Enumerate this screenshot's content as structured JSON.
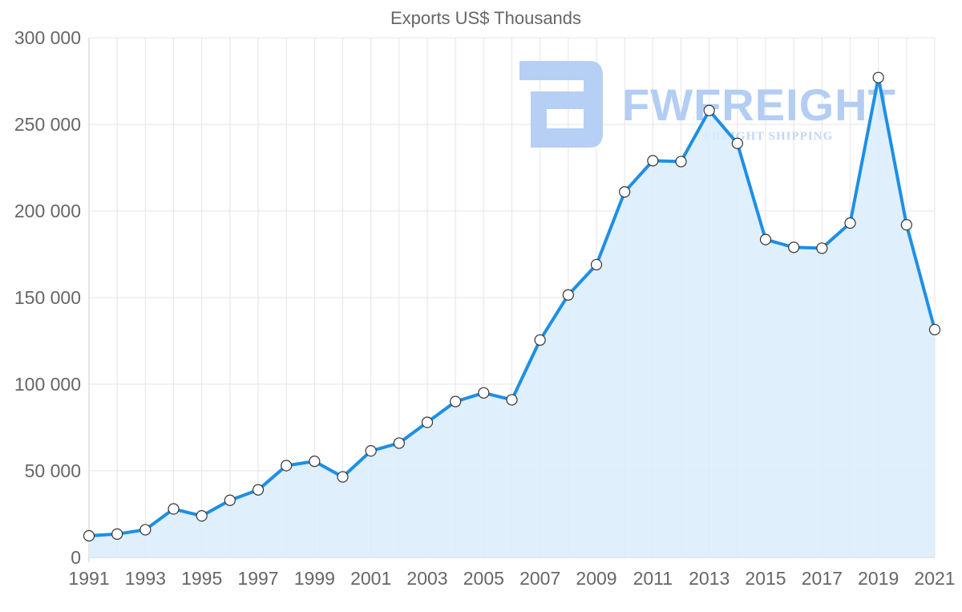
{
  "chart_data": {
    "type": "area",
    "title": "Exports US$ Thousands",
    "xlabel": "",
    "ylabel": "",
    "ylim": [
      0,
      300000
    ],
    "yticks": [
      0,
      50000,
      100000,
      150000,
      200000,
      250000,
      300000
    ],
    "ytick_labels": [
      "0",
      "50 000",
      "100 000",
      "150 000",
      "200 000",
      "250 000",
      "300 000"
    ],
    "x": [
      1991,
      1992,
      1993,
      1994,
      1995,
      1996,
      1997,
      1998,
      1999,
      2000,
      2001,
      2002,
      2003,
      2004,
      2005,
      2006,
      2007,
      2008,
      2009,
      2010,
      2011,
      2012,
      2013,
      2014,
      2015,
      2016,
      2017,
      2018,
      2019,
      2020,
      2021
    ],
    "xtick_labels": [
      "1991",
      "1993",
      "1995",
      "1997",
      "1999",
      "2001",
      "2003",
      "2005",
      "2007",
      "2009",
      "2011",
      "2013",
      "2015",
      "2017",
      "2019",
      "2021"
    ],
    "series": [
      {
        "name": "Exports",
        "color": "#1e8fe6",
        "fill": "#d9ecfc",
        "values": [
          12500,
          13500,
          16000,
          28000,
          24000,
          33000,
          39000,
          53000,
          55500,
          46500,
          61500,
          66000,
          78000,
          90000,
          95000,
          91000,
          125500,
          151500,
          169000,
          211000,
          229000,
          228500,
          258000,
          239000,
          183500,
          179000,
          178500,
          193000,
          277000,
          192000,
          131500
        ]
      }
    ],
    "grid": true,
    "legend": "none"
  },
  "watermark": {
    "brand": "FWFREIGHT",
    "tagline": "FREIGHT SHIPPING",
    "logo_icon": "fw-logo-icon"
  }
}
